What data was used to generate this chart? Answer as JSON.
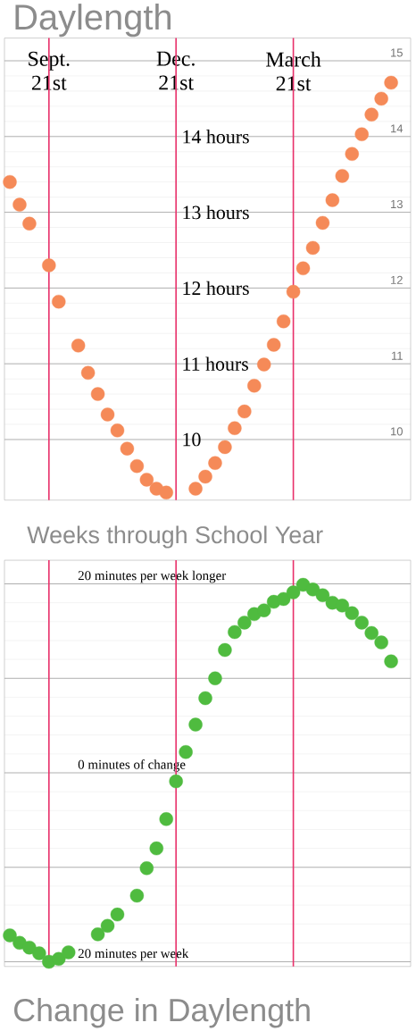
{
  "chart_data": [
    {
      "type": "scatter",
      "title": "Daylength",
      "xlabel": "Weeks through School Year",
      "categories": [
        null,
        null,
        null,
        null,
        "Sept. 21st",
        null,
        null,
        null,
        null,
        null,
        null,
        null,
        null,
        null,
        null,
        null,
        null,
        "Dec. 21st",
        null,
        null,
        null,
        null,
        null,
        null,
        null,
        null,
        null,
        null,
        null,
        "March 21st",
        null,
        null,
        null,
        null,
        null,
        null,
        null,
        null,
        null,
        null
      ],
      "series": [
        {
          "color": "#f58a58",
          "values": [
            13.4,
            13.1,
            12.85,
            null,
            12.3,
            11.82,
            null,
            11.24,
            10.88,
            10.6,
            10.33,
            10.12,
            9.88,
            9.65,
            9.47,
            9.35,
            9.3,
            null,
            null,
            9.35,
            9.51,
            9.69,
            9.9,
            10.15,
            10.37,
            10.71,
            10.99,
            11.25,
            11.56,
            11.95,
            12.26,
            12.53,
            12.86,
            13.16,
            13.48,
            13.77,
            14.03,
            14.29,
            14.5,
            14.71
          ]
        }
      ],
      "marker": "circle",
      "grid": "y",
      "ylim": [
        9.2,
        15.3
      ],
      "yticks": [
        10,
        {
          "value": 11,
          "label": "11 hours"
        },
        {
          "value": 12,
          "label": "12 hours"
        },
        {
          "value": 13,
          "label": "13 hours"
        },
        {
          "value": 14,
          "label": "14 hours"
        },
        {
          "value": 15,
          "label": null
        }
      ],
      "y2lim": [
        9.2,
        15.3
      ],
      "y2ticks": [
        10,
        11,
        12,
        13,
        14,
        15
      ],
      "ref_lines": [
        {
          "axis": "x",
          "value": "Sept. 21st",
          "color": "#e8306a"
        },
        {
          "axis": "x",
          "value": "Dec. 21st",
          "color": "#e8306a"
        },
        {
          "axis": "x",
          "value": "March 21st",
          "color": "#e8306a"
        }
      ]
    },
    {
      "type": "scatter",
      "title": "Change in Daylength",
      "categories": [
        null,
        null,
        null,
        null,
        "Sept. 21st",
        null,
        null,
        null,
        null,
        null,
        null,
        null,
        null,
        null,
        null,
        null,
        null,
        "Dec. 21st",
        null,
        null,
        null,
        null,
        null,
        null,
        null,
        null,
        null,
        null,
        null,
        "March 21st",
        null,
        null,
        null,
        null,
        null,
        null,
        null,
        null,
        null,
        null
      ],
      "series": [
        {
          "color": "#4fbb3f",
          "values": [
            -17.2,
            -18.0,
            -18.5,
            -19.1,
            -20.0,
            -19.7,
            -19.0,
            null,
            null,
            -17.1,
            -16.2,
            -15.0,
            null,
            -13.0,
            -10.1,
            -8.0,
            -4.9,
            -0.9,
            2.2,
            5.1,
            7.9,
            10.0,
            13.0,
            14.9,
            15.9,
            16.8,
            17.2,
            18.1,
            18.4,
            19.1,
            19.9,
            19.4,
            18.8,
            18.0,
            17.7,
            16.9,
            15.9,
            14.8,
            13.8,
            11.8
          ]
        }
      ],
      "marker": "circle",
      "grid": "y",
      "tick_labels": "y",
      "ylim": [
        -20.5,
        22.5
      ],
      "yticks": [
        {
          "value": -20,
          "label": "20 minutes per week"
        },
        {
          "value": -10,
          "label": null
        },
        {
          "value": 0,
          "label": "0 minutes of change"
        },
        {
          "value": 10,
          "label": null
        },
        {
          "value": 20,
          "label": "20 minutes per week longer"
        }
      ],
      "ref_lines": [
        {
          "axis": "x",
          "value": "Sept. 21st",
          "color": "#e8306a"
        },
        {
          "axis": "x",
          "value": "Dec. 21st",
          "color": "#e8306a"
        },
        {
          "axis": "x",
          "value": "March 21st",
          "color": "#e8306a"
        }
      ]
    }
  ]
}
